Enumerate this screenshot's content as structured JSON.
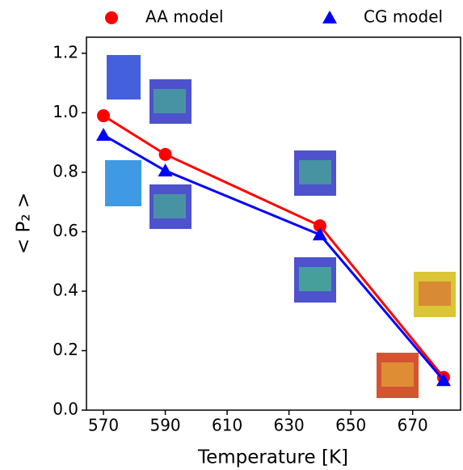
{
  "chart_data": {
    "type": "line",
    "x_label": "Temperature [K]",
    "y_label": "< P₂ >",
    "x": [
      570,
      590,
      640,
      680
    ],
    "series": [
      {
        "name": "AA model",
        "color": "#ff0000",
        "marker": "circle",
        "values": [
          0.99,
          0.86,
          0.62,
          0.11
        ]
      },
      {
        "name": "CG model",
        "color": "#0000ff",
        "marker": "triangle",
        "values": [
          0.925,
          0.805,
          0.59,
          0.1
        ]
      }
    ],
    "xlim": [
      564.5,
      685.5
    ],
    "xticks": [
      570,
      590,
      610,
      630,
      650,
      670
    ],
    "ylim": [
      0,
      1.254
    ],
    "yticks": [
      {
        "value": 0,
        "label": "0.0"
      },
      {
        "value": 0.2,
        "label": "0.2"
      },
      {
        "value": 0.4,
        "label": "0.4"
      },
      {
        "value": 0.6,
        "label": "0.6"
      },
      {
        "value": 0.8,
        "label": "0.8"
      },
      {
        "value": 1.0,
        "label": "1.0"
      },
      {
        "value": 1.2,
        "label": "1.2"
      }
    ],
    "legend": "top"
  }
}
